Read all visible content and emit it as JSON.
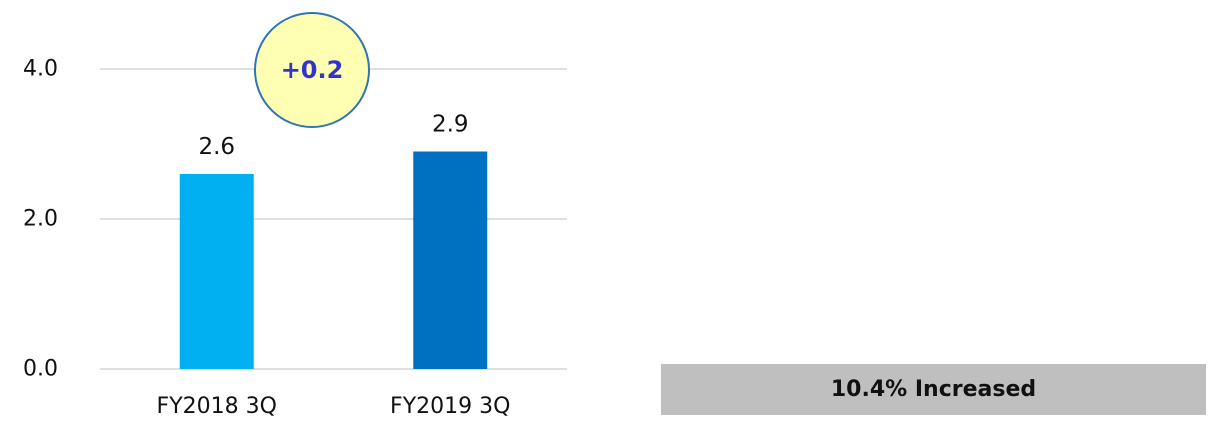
{
  "chart_data": {
    "type": "bar",
    "categories": [
      "FY2018 3Q",
      "FY2019 3Q"
    ],
    "values": [
      2.6,
      2.9
    ],
    "data_labels": [
      "2.6",
      "2.9"
    ],
    "yticks": [
      {
        "value": 0,
        "label": "0.0"
      },
      {
        "value": 2,
        "label": "2.0"
      },
      {
        "value": 4,
        "label": "4.0"
      }
    ],
    "ylim": [
      0,
      4
    ],
    "grid": true,
    "bar_colors": [
      "#00b0f0",
      "#0070c0"
    ],
    "gridline_color": "#bfbfbf",
    "annotation": {
      "text": "+0.2",
      "fill": "#ffffb3",
      "stroke": "#2e75b6",
      "text_color": "#3333cc"
    }
  },
  "summary": {
    "text": "10.4% Increased",
    "background": "#bfbfbf"
  }
}
